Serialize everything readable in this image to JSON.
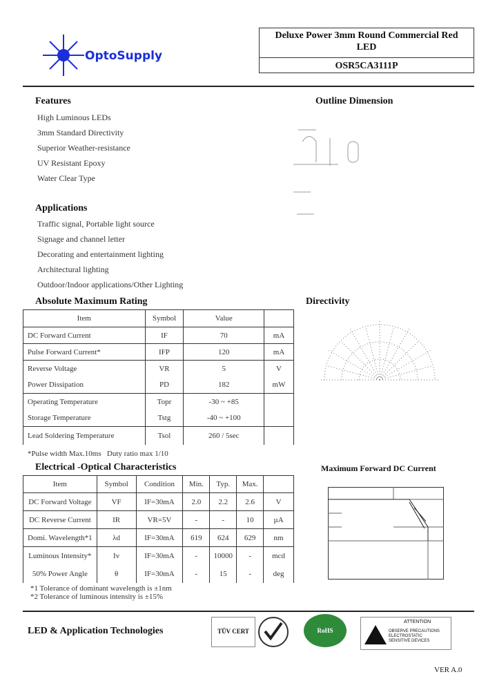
{
  "brand": {
    "name": "OptoSupply",
    "color": "#1a2fd6"
  },
  "title_box": {
    "title": "Deluxe Power 3mm Round Commercial Red LED",
    "part": "OSR5CA3111P"
  },
  "features": {
    "heading": "Features",
    "items": [
      "High Luminous LEDs",
      "3mm Standard Directivity",
      "Superior Weather-resistance",
      "UV Resistant Epoxy",
      "Water Clear Type"
    ]
  },
  "outline": {
    "heading": "Outline Dimension"
  },
  "applications": {
    "heading": "Applications",
    "items": [
      "Traffic signal, Portable light source",
      "Signage and channel letter",
      "Decorating and entertainment lighting",
      "Architectural lighting",
      "Outdoor/Indoor applications/Other Lighting"
    ]
  },
  "amr": {
    "heading": "Absolute Maximum Rating",
    "headers": [
      "Item",
      "Symbol",
      "Value",
      ""
    ],
    "rows": [
      [
        "DC Forward Current",
        "IF",
        "70",
        "mA"
      ],
      [
        "Pulse Forward Current*",
        "IFP",
        "120",
        "mA"
      ],
      [
        "Reverse Voltage",
        "VR",
        "5",
        "V"
      ],
      [
        "Power Dissipation",
        "PD",
        "182",
        "mW"
      ],
      [
        "Operating Temperature",
        "Topr",
        "-30 ~ +85",
        ""
      ],
      [
        "Storage Temperature",
        "Tstg",
        "-40 ~ +100",
        ""
      ],
      [
        "Lead Soldering Temperature",
        "Tsol",
        "260 / 5sec",
        ""
      ]
    ],
    "note": "*Pulse width Max.10ms   Duty ratio max 1/10"
  },
  "directivity": {
    "heading": "Directivity"
  },
  "eoc": {
    "heading": "Electrical -Optical Characteristics",
    "headers": [
      "Item",
      "Symbol",
      "Condition",
      "Min.",
      "Typ.",
      "Max.",
      ""
    ],
    "rows": [
      [
        "DC Forward Voltage",
        "VF",
        "IF=30mA",
        "2.0",
        "2.2",
        "2.6",
        "V"
      ],
      [
        "DC Reverse Current",
        "IR",
        "VR=5V",
        "-",
        "-",
        "10",
        "µA"
      ],
      [
        "Domi. Wavelength*1",
        "λd",
        "IF=30mA",
        "619",
        "624",
        "629",
        "nm"
      ],
      [
        "Luminous Intensity*",
        "Iv",
        "IF=30mA",
        "-",
        "10000",
        "-",
        "mcd"
      ],
      [
        "50% Power Angle",
        "θ",
        "IF=30mA",
        "-",
        "15",
        "-",
        "deg"
      ]
    ],
    "notes": [
      "*1 Tolerance of dominant wavelength is ±1nm",
      "*2 Tolerance of luminous intensity is ±15%"
    ]
  },
  "mfdc": {
    "heading": "Maximum Forward DC Current"
  },
  "footer": {
    "left": "LED & Application Technologies",
    "logos": [
      "TÜV CERT",
      "Quality",
      "RoHS Compliant"
    ],
    "attention": {
      "title": "ATTENTION",
      "lines": [
        "OBSERVE PRECAUTIONS",
        "ELECTROSTATIC",
        "SENSITIVE DEVICES"
      ]
    },
    "version": "VER A.0"
  }
}
